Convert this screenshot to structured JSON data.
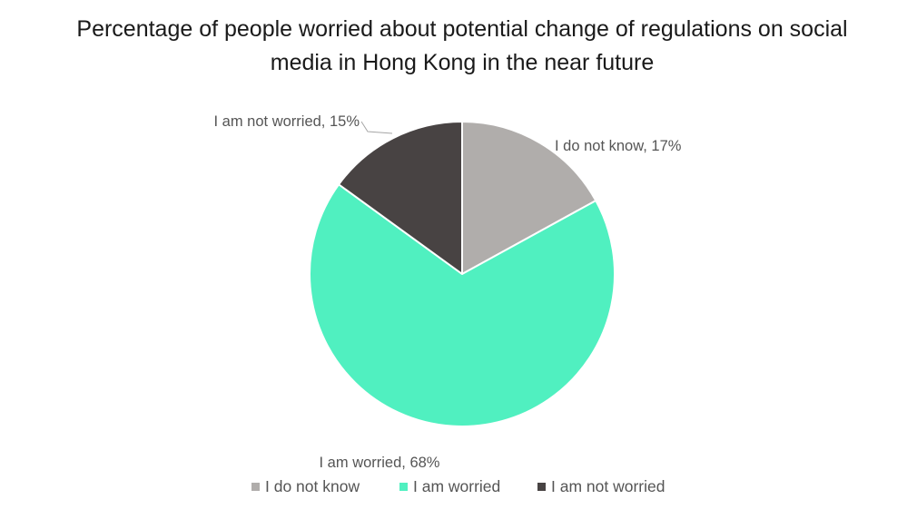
{
  "chart_data": {
    "type": "pie",
    "title_lines": [
      "Percentage of people worried about potential change of regulations on social",
      "media in Hong Kong in the near future"
    ],
    "unit": "%",
    "slices": [
      {
        "label": "I do not know",
        "value": 17,
        "data_label": "I do not know, 17%",
        "color": "#b0adab"
      },
      {
        "label": "I am worried",
        "value": 68,
        "data_label": "I am worried, 68%",
        "color": "#50f0c0"
      },
      {
        "label": "I am not worried",
        "value": 15,
        "data_label": "I am not worried, 15%",
        "color": "#484343"
      }
    ],
    "legend_position": "bottom",
    "start_angle_deg": 0,
    "direction": "clockwise"
  }
}
